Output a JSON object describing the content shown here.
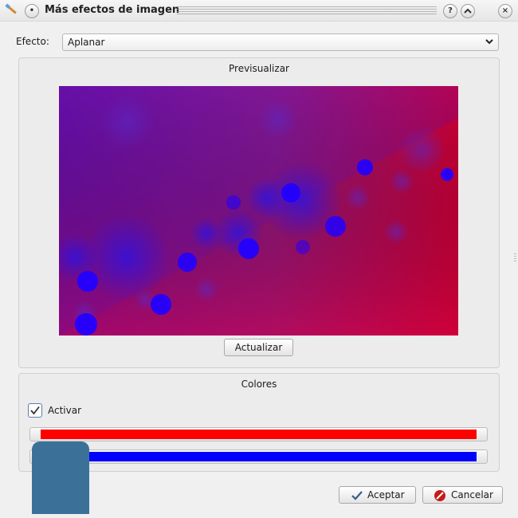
{
  "window": {
    "title": "Más efectos de imagen",
    "buttons": {
      "help": "?",
      "shade": "^",
      "close": "×"
    }
  },
  "effect": {
    "label": "Efecto:",
    "selected": "Aplanar"
  },
  "preview_group": {
    "title": "Previsualizar",
    "update_button": "Actualizar",
    "image": {
      "gradient_start": "#6a0fa8",
      "gradient_end": "#cf0038",
      "blob_color": "#2200ff"
    }
  },
  "colors_group": {
    "title": "Colores",
    "enable_label": "Activar",
    "enabled": true,
    "color1": "#ff0000",
    "color2": "#0000ff"
  },
  "footer": {
    "accept": "Aceptar",
    "cancel": "Cancelar"
  },
  "overlay_color": "#3b7198"
}
